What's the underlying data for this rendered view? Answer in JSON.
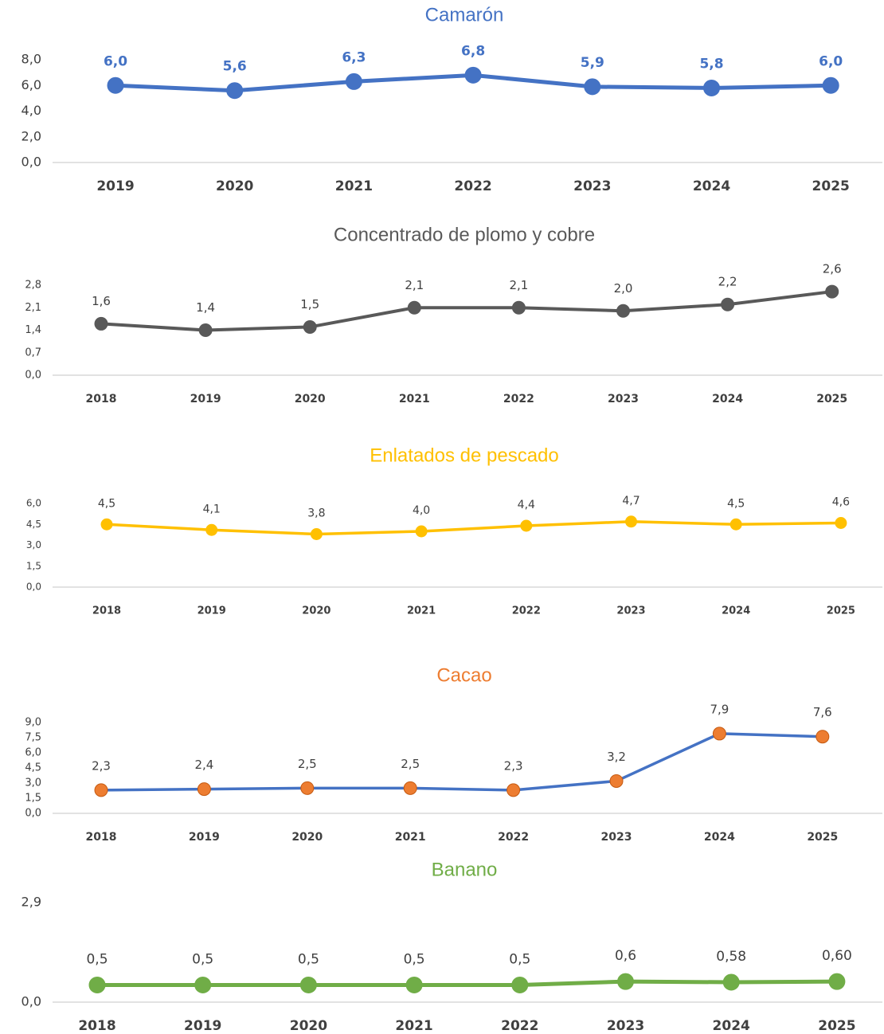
{
  "chart_data": [
    {
      "type": "line",
      "title": "Camarón",
      "title_color": "#4472c4",
      "color": "#4472c4",
      "categories": [
        "2019",
        "2020",
        "2021",
        "2022",
        "2023",
        "2024",
        "2025"
      ],
      "values": [
        6.0,
        5.6,
        6.3,
        6.8,
        5.9,
        5.8,
        6.0
      ],
      "value_labels": [
        "6,0",
        "5,6",
        "6,3",
        "6,8",
        "5,9",
        "5,8",
        "6,0"
      ],
      "label_color": "#4472c4",
      "ylim": [
        0,
        8
      ],
      "yticks": [
        {
          "value": 0,
          "label": "0,0"
        },
        {
          "value": 2,
          "label": "2,0"
        },
        {
          "value": 4,
          "label": "4,0"
        },
        {
          "value": 6,
          "label": "6,0"
        },
        {
          "value": 8,
          "label": "8,0"
        }
      ]
    },
    {
      "type": "line",
      "title": "Concentrado de plomo y cobre",
      "title_color": "#595959",
      "color": "#595959",
      "categories": [
        "2018",
        "2019",
        "2020",
        "2021",
        "2022",
        "2023",
        "2024",
        "2025"
      ],
      "values": [
        1.6,
        1.4,
        1.5,
        2.1,
        2.1,
        2.0,
        2.2,
        2.6
      ],
      "value_labels": [
        "1,6",
        "1,4",
        "1,5",
        "2,1",
        "2,1",
        "2,0",
        "2,2",
        "2,6"
      ],
      "label_color": "#404040",
      "ylim": [
        0,
        2.8
      ],
      "yticks": [
        {
          "value": 0,
          "label": "0,0"
        },
        {
          "value": 0.7,
          "label": "0,7"
        },
        {
          "value": 1.4,
          "label": "1,4"
        },
        {
          "value": 2.1,
          "label": "2,1"
        },
        {
          "value": 2.8,
          "label": "2,8"
        }
      ]
    },
    {
      "type": "line",
      "title": "Enlatados de pescado",
      "title_color": "#ffc000",
      "color": "#ffc000",
      "categories": [
        "2018",
        "2019",
        "2020",
        "2021",
        "2022",
        "2023",
        "2024",
        "2025"
      ],
      "values": [
        4.5,
        4.1,
        3.8,
        4.0,
        4.4,
        4.7,
        4.5,
        4.6
      ],
      "value_labels": [
        "4,5",
        "4,1",
        "3,8",
        "4,0",
        "4,4",
        "4,7",
        "4,5",
        "4,6"
      ],
      "label_color": "#404040",
      "ylim": [
        0,
        6
      ],
      "yticks": [
        {
          "value": 0,
          "label": "0,0"
        },
        {
          "value": 1.5,
          "label": "1,5"
        },
        {
          "value": 3,
          "label": "3,0"
        },
        {
          "value": 4.5,
          "label": "4,5"
        },
        {
          "value": 6,
          "label": "6,0"
        }
      ]
    },
    {
      "type": "line",
      "title": "Cacao",
      "title_color": "#ed7d31",
      "color": "#4472c4",
      "marker_color": "#ed7d31",
      "categories": [
        "2018",
        "2019",
        "2020",
        "2021",
        "2022",
        "2023",
        "2024",
        "2025"
      ],
      "values": [
        2.3,
        2.4,
        2.5,
        2.5,
        2.3,
        3.2,
        7.9,
        7.6
      ],
      "value_labels": [
        "2,3",
        "2,4",
        "2,5",
        "2,5",
        "2,3",
        "3,2",
        "7,9",
        "7,6"
      ],
      "label_color": "#404040",
      "ylim": [
        0,
        9
      ],
      "yticks": [
        {
          "value": 0,
          "label": "0,0"
        },
        {
          "value": 1.5,
          "label": "1,5"
        },
        {
          "value": 3,
          "label": "3,0"
        },
        {
          "value": 4.5,
          "label": "4,5"
        },
        {
          "value": 6,
          "label": "6,0"
        },
        {
          "value": 7.5,
          "label": "7,5"
        },
        {
          "value": 9,
          "label": "9,0"
        }
      ]
    },
    {
      "type": "line",
      "title": "Banano",
      "title_color": "#70ad47",
      "color": "#70ad47",
      "categories": [
        "2018",
        "2019",
        "2020",
        "2021",
        "2022",
        "2023",
        "2024",
        "2025"
      ],
      "values": [
        0.5,
        0.5,
        0.5,
        0.5,
        0.5,
        0.6,
        0.58,
        0.6
      ],
      "value_labels": [
        "0,5",
        "0,5",
        "0,5",
        "0,5",
        "0,5",
        "0,6",
        "0,58",
        "0,60"
      ],
      "label_color": "#404040",
      "ylim": [
        0,
        2.9
      ],
      "yticks": [
        {
          "value": 0,
          "label": "0,0"
        },
        {
          "value": 2.9,
          "label": "2,9"
        }
      ]
    }
  ]
}
